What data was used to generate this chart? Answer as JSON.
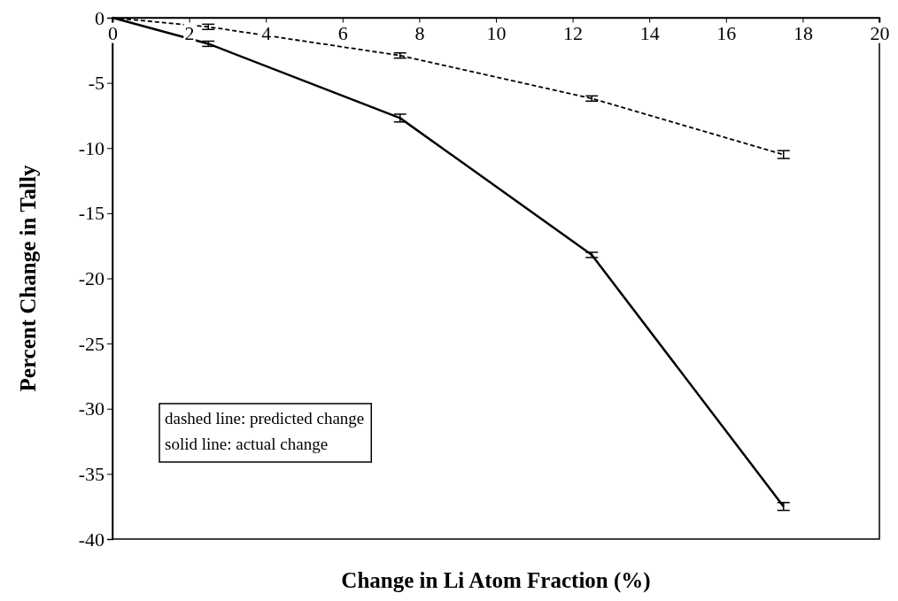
{
  "chart_data": {
    "type": "line",
    "xlabel": "Change in Li Atom Fraction (%)",
    "ylabel": "Percent Change in Tally",
    "xlim": [
      0,
      20
    ],
    "xticks": [
      0,
      2,
      4,
      6,
      8,
      10,
      12,
      14,
      16,
      18,
      20
    ],
    "ylim": [
      -40,
      0
    ],
    "yticks": [
      0,
      -5,
      -10,
      -15,
      -20,
      -25,
      -30,
      -35,
      -40
    ],
    "grid": false,
    "marker": "none",
    "annotations": [
      "dashed line: predicted change",
      "solid line: actual change"
    ],
    "series": [
      {
        "color": "#000000",
        "line_style": "dashed",
        "x": [
          0,
          2.5,
          7.5,
          12.5,
          17.5
        ],
        "values": [
          0,
          -0.7,
          -2.9,
          -6.2,
          -10.5
        ],
        "errors": [
          null,
          0.2,
          0.2,
          0.2,
          0.3
        ]
      },
      {
        "color": "#000000",
        "line_style": "solid",
        "x": [
          0,
          2.5,
          7.5,
          12.5,
          17.5
        ],
        "values": [
          0,
          -2,
          -7.7,
          -18.2,
          -37.5
        ],
        "errors": [
          null,
          0.2,
          0.3,
          0.2,
          0.3
        ]
      }
    ]
  }
}
